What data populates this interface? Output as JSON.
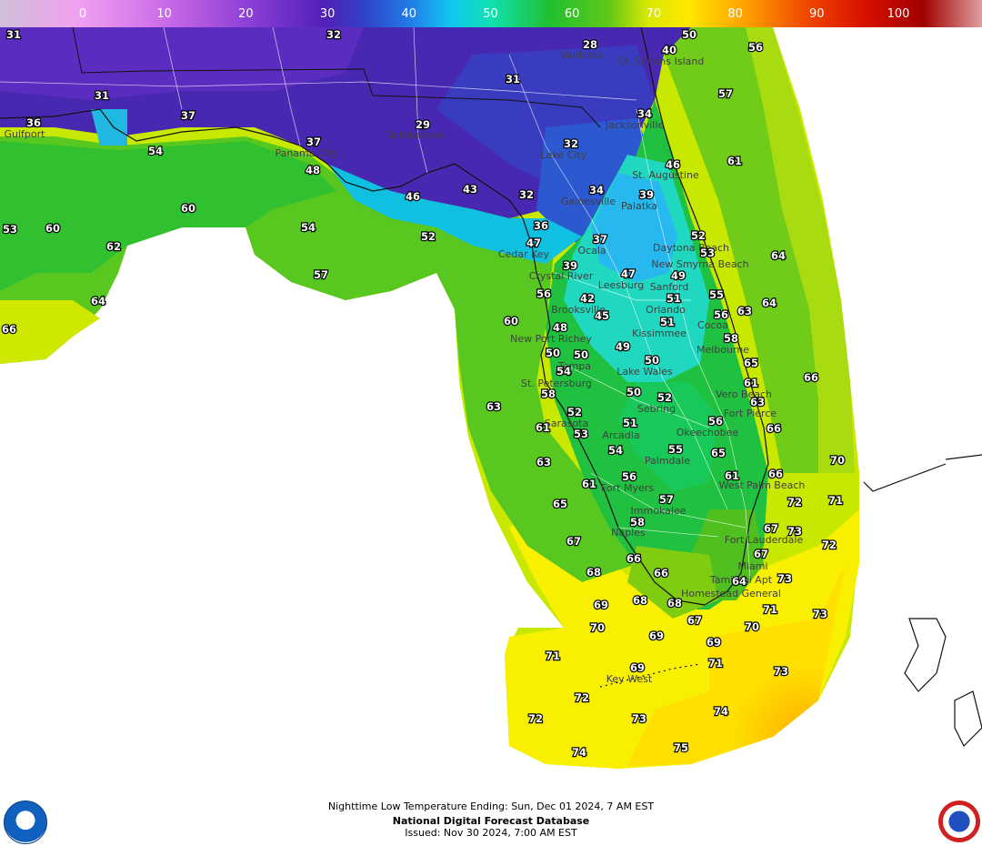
{
  "colorbar": {
    "labels": [
      {
        "text": "0",
        "value": 0
      },
      {
        "text": "10",
        "value": 10
      },
      {
        "text": "20",
        "value": 20
      },
      {
        "text": "30",
        "value": 30
      },
      {
        "text": "40",
        "value": 40
      },
      {
        "text": "50",
        "value": 50
      },
      {
        "text": "60",
        "value": 60
      },
      {
        "text": "70",
        "value": 70
      },
      {
        "text": "80",
        "value": 80
      },
      {
        "text": "90",
        "value": 90
      },
      {
        "text": "100",
        "value": 100
      }
    ],
    "colors": {
      "low": "#d8b0e8",
      "violet": "#6a1fc0",
      "blue": "#2f4fd8",
      "cyan": "#10d0e0",
      "green": "#20c020",
      "yellow": "#f8f000",
      "orange": "#f89000",
      "red": "#e02000",
      "darkred": "#a00000"
    }
  },
  "values": [
    {
      "text": "31",
      "value": 31
    },
    {
      "text": "32",
      "value": 32
    },
    {
      "text": "28",
      "value": 28
    },
    {
      "text": "40",
      "value": 40
    },
    {
      "text": "50",
      "value": 50
    },
    {
      "text": "56",
      "value": 56
    },
    {
      "text": "31",
      "value": 31
    },
    {
      "text": "31",
      "value": 31
    },
    {
      "text": "57",
      "value": 57
    },
    {
      "text": "36",
      "value": 36
    },
    {
      "text": "37",
      "value": 37
    },
    {
      "text": "29",
      "value": 29
    },
    {
      "text": "34",
      "value": 34
    },
    {
      "text": "32",
      "value": 32
    },
    {
      "text": "37",
      "value": 37
    },
    {
      "text": "54",
      "value": 54
    },
    {
      "text": "61",
      "value": 61
    },
    {
      "text": "46",
      "value": 46
    },
    {
      "text": "48",
      "value": 48
    },
    {
      "text": "43",
      "value": 43
    },
    {
      "text": "32",
      "value": 32
    },
    {
      "text": "34",
      "value": 34
    },
    {
      "text": "39",
      "value": 39
    },
    {
      "text": "46",
      "value": 46
    },
    {
      "text": "60",
      "value": 60
    },
    {
      "text": "36",
      "value": 36
    },
    {
      "text": "53",
      "value": 53
    },
    {
      "text": "60",
      "value": 60
    },
    {
      "text": "54",
      "value": 54
    },
    {
      "text": "52",
      "value": 52
    },
    {
      "text": "37",
      "value": 37
    },
    {
      "text": "52",
      "value": 52
    },
    {
      "text": "62",
      "value": 62
    },
    {
      "text": "47",
      "value": 47
    },
    {
      "text": "53",
      "value": 53
    },
    {
      "text": "64",
      "value": 64
    },
    {
      "text": "39",
      "value": 39
    },
    {
      "text": "57",
      "value": 57
    },
    {
      "text": "47",
      "value": 47
    },
    {
      "text": "49",
      "value": 49
    },
    {
      "text": "56",
      "value": 56
    },
    {
      "text": "42",
      "value": 42
    },
    {
      "text": "51",
      "value": 51
    },
    {
      "text": "55",
      "value": 55
    },
    {
      "text": "64",
      "value": 64
    },
    {
      "text": "64",
      "value": 64
    },
    {
      "text": "45",
      "value": 45
    },
    {
      "text": "56",
      "value": 56
    },
    {
      "text": "63",
      "value": 63
    },
    {
      "text": "60",
      "value": 60
    },
    {
      "text": "51",
      "value": 51
    },
    {
      "text": "48",
      "value": 48
    },
    {
      "text": "66",
      "value": 66
    },
    {
      "text": "58",
      "value": 58
    },
    {
      "text": "49",
      "value": 49
    },
    {
      "text": "50",
      "value": 50
    },
    {
      "text": "50",
      "value": 50
    },
    {
      "text": "50",
      "value": 50
    },
    {
      "text": "65",
      "value": 65
    },
    {
      "text": "54",
      "value": 54
    },
    {
      "text": "66",
      "value": 66
    },
    {
      "text": "61",
      "value": 61
    },
    {
      "text": "58",
      "value": 58
    },
    {
      "text": "50",
      "value": 50
    },
    {
      "text": "63",
      "value": 63
    },
    {
      "text": "63",
      "value": 63
    },
    {
      "text": "52",
      "value": 52
    },
    {
      "text": "52",
      "value": 52
    },
    {
      "text": "56",
      "value": 56
    },
    {
      "text": "61",
      "value": 61
    },
    {
      "text": "51",
      "value": 51
    },
    {
      "text": "66",
      "value": 66
    },
    {
      "text": "53",
      "value": 53
    },
    {
      "text": "54",
      "value": 54
    },
    {
      "text": "55",
      "value": 55
    },
    {
      "text": "65",
      "value": 65
    },
    {
      "text": "63",
      "value": 63
    },
    {
      "text": "70",
      "value": 70
    },
    {
      "text": "61",
      "value": 61
    },
    {
      "text": "56",
      "value": 56
    },
    {
      "text": "66",
      "value": 66
    },
    {
      "text": "61",
      "value": 61
    },
    {
      "text": "57",
      "value": 57
    },
    {
      "text": "72",
      "value": 72
    },
    {
      "text": "71",
      "value": 71
    },
    {
      "text": "65",
      "value": 65
    },
    {
      "text": "58",
      "value": 58
    },
    {
      "text": "67",
      "value": 67
    },
    {
      "text": "73",
      "value": 73
    },
    {
      "text": "67",
      "value": 67
    },
    {
      "text": "72",
      "value": 72
    },
    {
      "text": "67",
      "value": 67
    },
    {
      "text": "68",
      "value": 68
    },
    {
      "text": "66",
      "value": 66
    },
    {
      "text": "66",
      "value": 66
    },
    {
      "text": "64",
      "value": 64
    },
    {
      "text": "73",
      "value": 73
    },
    {
      "text": "69",
      "value": 69
    },
    {
      "text": "68",
      "value": 68
    },
    {
      "text": "68",
      "value": 68
    },
    {
      "text": "71",
      "value": 71
    },
    {
      "text": "73",
      "value": 73
    },
    {
      "text": "70",
      "value": 70
    },
    {
      "text": "67",
      "value": 67
    },
    {
      "text": "70",
      "value": 70
    },
    {
      "text": "69",
      "value": 69
    },
    {
      "text": "69",
      "value": 69
    },
    {
      "text": "71",
      "value": 71
    },
    {
      "text": "71",
      "value": 71
    },
    {
      "text": "69",
      "value": 69
    },
    {
      "text": "73",
      "value": 73
    },
    {
      "text": "72",
      "value": 72
    },
    {
      "text": "72",
      "value": 72
    },
    {
      "text": "73",
      "value": 73
    },
    {
      "text": "74",
      "value": 74
    },
    {
      "text": "74",
      "value": 74
    },
    {
      "text": "75",
      "value": 75
    }
  ],
  "cities": [
    "Valdosta",
    "St. Simons Island",
    "Gulfport",
    "Tallahassee",
    "Jacksonville",
    "Panama City",
    "Lake City",
    "St. Augustine",
    "Gainesville",
    "Palatka",
    "Cedar Key",
    "Ocala",
    "Daytona Beach",
    "Crystal River",
    "Leesburg",
    "New Smyrna Beach",
    "Sanford",
    "Brooksville",
    "Orlando",
    "Cocoa",
    "New Port Richey",
    "Kissimmee",
    "Melbourne",
    "Tampa",
    "Lake Wales",
    "St. Petersburg",
    "Vero Beach",
    "Sebring",
    "Fort Pierce",
    "Sarasota",
    "Okeechobee",
    "Arcadia",
    "Palmdale",
    "West Palm Beach",
    "Fort Myers",
    "Immokalee",
    "Naples",
    "Fort Lauderdale",
    "Miami",
    "Tamiami Apt",
    "Homestead General",
    "Key West"
  ],
  "footer": {
    "line1": "Nighttime Low Temperature Ending: Sun, Dec 01 2024, 7 AM EST",
    "line2": "National Digital Forecast Database",
    "line3": "Issued: Nov 30 2024, 7:00 AM EST"
  },
  "logos": {
    "left_icon": "noaa-logo",
    "right_icon": "nws-logo"
  }
}
